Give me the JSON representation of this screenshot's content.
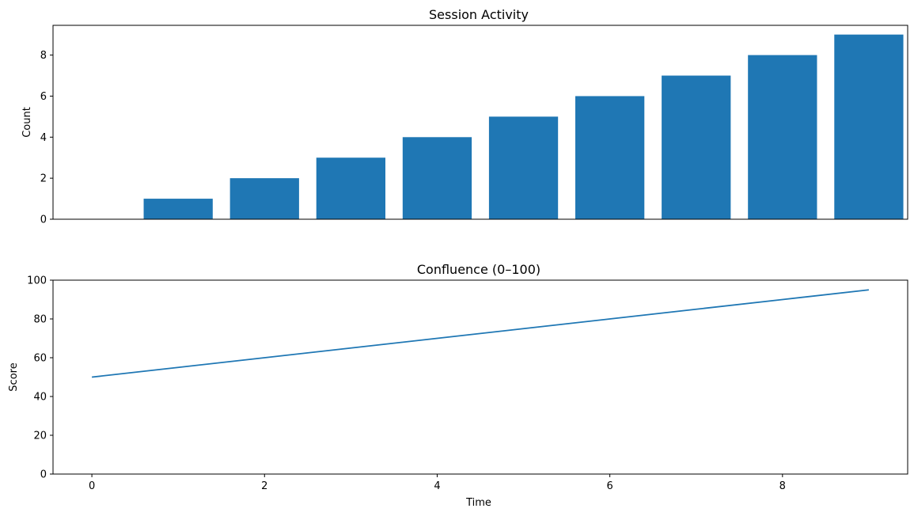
{
  "chart_data": [
    {
      "type": "bar",
      "title": "Session Activity",
      "xlabel": "",
      "ylabel": "Count",
      "categories": [
        0,
        1,
        2,
        3,
        4,
        5,
        6,
        7,
        8,
        9
      ],
      "values": [
        0,
        1,
        2,
        3,
        4,
        5,
        6,
        7,
        8,
        9
      ],
      "xlim": [
        -0.45,
        9.45
      ],
      "ylim": [
        0,
        9.45
      ],
      "yticks": [
        0,
        2,
        4,
        6,
        8
      ],
      "grid": false,
      "color": "#1f77b4"
    },
    {
      "type": "line",
      "title": "Confluence (0–100)",
      "xlabel": "Time",
      "ylabel": "Score",
      "x": [
        0,
        1,
        2,
        3,
        4,
        5,
        6,
        7,
        8,
        9
      ],
      "y": [
        50,
        55,
        60,
        65,
        70,
        75,
        80,
        85,
        90,
        95
      ],
      "xlim": [
        -0.45,
        9.45
      ],
      "ylim": [
        0,
        100
      ],
      "xticks": [
        0,
        2,
        4,
        6,
        8
      ],
      "yticks": [
        0,
        20,
        40,
        60,
        80,
        100
      ],
      "grid": false,
      "color": "#1f77b4"
    }
  ]
}
